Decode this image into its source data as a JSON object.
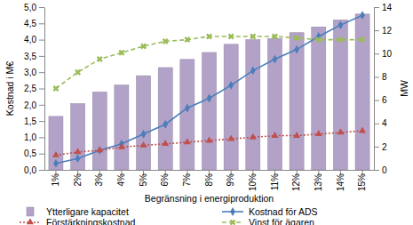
{
  "chart_data": {
    "type": "bar",
    "x_label": "Begränsning i energiproduktion",
    "y_label": "Kostnad i M€",
    "y2_label": "MW",
    "categories": [
      "1%",
      "2%",
      "3%",
      "4%",
      "5%",
      "6%",
      "7%",
      "8%",
      "9%",
      "10%",
      "11%",
      "12%",
      "13%",
      "14%",
      "15%"
    ],
    "series": [
      {
        "name": "Ytterligare kapacitet",
        "type": "bar",
        "axis": "y2",
        "color": "#b3a2c7",
        "values": [
          4.6,
          5.7,
          6.7,
          7.3,
          8.1,
          8.8,
          9.5,
          10.1,
          10.8,
          11.2,
          11.3,
          11.8,
          12.3,
          12.9,
          13.4
        ]
      },
      {
        "name": "Kostnad för ADS",
        "type": "line",
        "color": "#4a7ebb",
        "marker": "diamond",
        "line_style": "solid",
        "values": [
          0.2,
          0.35,
          0.6,
          0.8,
          1.1,
          1.4,
          1.9,
          2.2,
          2.6,
          3.05,
          3.4,
          3.7,
          4.1,
          4.45,
          4.75
        ]
      },
      {
        "name": "Förstärkningskostnad",
        "type": "line",
        "color": "#c0504d",
        "marker": "triangle",
        "line_style": "dotted",
        "values": [
          0.45,
          0.55,
          0.6,
          0.7,
          0.75,
          0.8,
          0.85,
          0.9,
          0.95,
          1.0,
          1.05,
          1.05,
          1.1,
          1.15,
          1.2
        ]
      },
      {
        "name": "Vinst för ägaren",
        "type": "line",
        "color": "#9bbb59",
        "marker": "x",
        "line_style": "dashed",
        "values": [
          2.5,
          3.0,
          3.4,
          3.6,
          3.8,
          3.95,
          4.0,
          4.1,
          4.1,
          4.1,
          4.1,
          4.05,
          4.0,
          4.0,
          4.0
        ]
      }
    ],
    "ylim": [
      0,
      5
    ],
    "yticks": [
      {
        "value": 0,
        "label": "0,0"
      },
      {
        "value": 0.5,
        "label": "0,5"
      },
      {
        "value": 1,
        "label": "1,0"
      },
      {
        "value": 1.5,
        "label": "1,5"
      },
      {
        "value": 2,
        "label": "2,0"
      },
      {
        "value": 2.5,
        "label": "2,5"
      },
      {
        "value": 3,
        "label": "3,0"
      },
      {
        "value": 3.5,
        "label": "3,5"
      },
      {
        "value": 4,
        "label": "4,0"
      },
      {
        "value": 4.5,
        "label": "4,5"
      },
      {
        "value": 5,
        "label": "5,0"
      }
    ],
    "y2lim": [
      0,
      14
    ],
    "y2ticks": [
      0,
      2,
      4,
      6,
      8,
      10,
      12,
      14
    ],
    "grid": false,
    "legend": "bottom"
  }
}
